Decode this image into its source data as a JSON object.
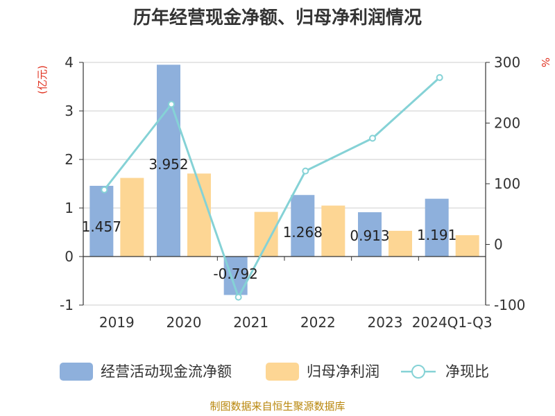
{
  "chart_data": {
    "type": "bar",
    "title": "历年经营现金净额、归母净利润情况",
    "categories": [
      "2019",
      "2020",
      "2021",
      "2022",
      "2023",
      "2024Q1-Q3"
    ],
    "series": [
      {
        "name": "经营活动现金流净额",
        "type": "bar",
        "axis": "left",
        "color": "#8eb0dc",
        "values": [
          1.457,
          3.952,
          -0.792,
          1.268,
          0.913,
          1.191
        ],
        "labels": [
          "1.457",
          "3.952",
          "-0.792",
          "1.268",
          "0.913",
          "1.191"
        ]
      },
      {
        "name": "归母净利润",
        "type": "bar",
        "axis": "left",
        "color": "#fdd694",
        "values": [
          1.62,
          1.71,
          0.92,
          1.05,
          0.53,
          0.44
        ]
      },
      {
        "name": "净现比",
        "type": "line",
        "axis": "right",
        "color": "#85d2d6",
        "values": [
          90,
          231,
          -87,
          121,
          175,
          275
        ]
      }
    ],
    "left_axis": {
      "unit": "(亿元)",
      "ylim": [
        -1,
        4
      ],
      "ticks": [
        "-1",
        "0",
        "1",
        "2",
        "3",
        "4"
      ]
    },
    "right_axis": {
      "unit": "%",
      "ylim": [
        -100,
        300
      ],
      "ticks": [
        "-100",
        "0",
        "100",
        "200",
        "300"
      ]
    },
    "grid": true,
    "legend_position": "bottom"
  },
  "source": "制图数据来自恒生聚源数据库"
}
